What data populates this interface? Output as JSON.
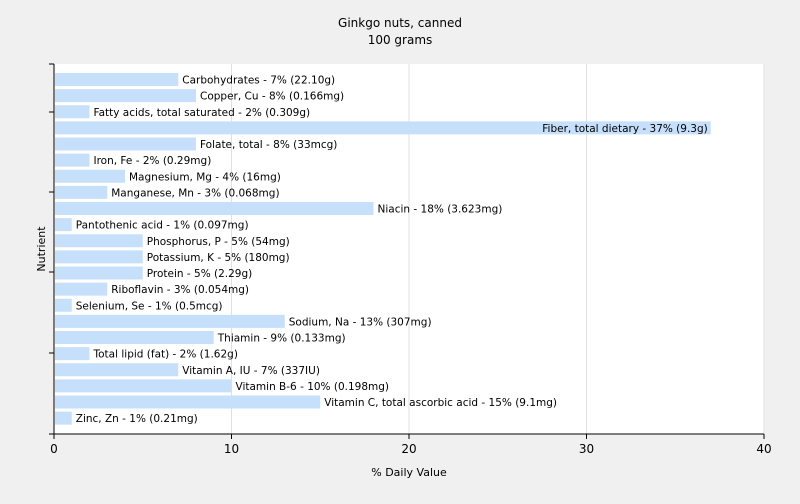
{
  "chart_data": {
    "type": "bar",
    "orientation": "horizontal",
    "title": "Ginkgo nuts, canned",
    "subtitle": "100 grams",
    "xlabel": "% Daily Value",
    "ylabel": "Nutrient",
    "xlim": [
      0,
      40
    ],
    "xticks": [
      0,
      10,
      20,
      30,
      40
    ],
    "grid": true,
    "bar_color": "#c6dffb",
    "background_color": "#f0f0f0",
    "plot_background_color": "#ffffff",
    "categories": [
      "Carbohydrates",
      "Copper, Cu",
      "Fatty acids, total saturated",
      "Fiber, total dietary",
      "Folate, total",
      "Iron, Fe",
      "Magnesium, Mg",
      "Manganese, Mn",
      "Niacin",
      "Pantothenic acid",
      "Phosphorus, P",
      "Potassium, K",
      "Protein",
      "Riboflavin",
      "Selenium, Se",
      "Sodium, Na",
      "Thiamin",
      "Total lipid (fat)",
      "Vitamin A, IU",
      "Vitamin B-6",
      "Vitamin C, total ascorbic acid",
      "Zinc, Zn"
    ],
    "values": [
      7,
      8,
      2,
      37,
      8,
      2,
      4,
      3,
      18,
      1,
      5,
      5,
      5,
      3,
      1,
      13,
      9,
      2,
      7,
      10,
      15,
      1
    ],
    "labels": [
      "Carbohydrates - 7% (22.10g)",
      "Copper, Cu - 8% (0.166mg)",
      "Fatty acids, total saturated - 2% (0.309g)",
      "Fiber, total dietary - 37% (9.3g)",
      "Folate, total - 8% (33mcg)",
      "Iron, Fe - 2% (0.29mg)",
      "Magnesium, Mg - 4% (16mg)",
      "Manganese, Mn - 3% (0.068mg)",
      "Niacin - 18% (3.623mg)",
      "Pantothenic acid - 1% (0.097mg)",
      "Phosphorus, P - 5% (54mg)",
      "Potassium, K - 5% (180mg)",
      "Protein - 5% (2.29g)",
      "Riboflavin - 3% (0.054mg)",
      "Selenium, Se - 1% (0.5mcg)",
      "Sodium, Na - 13% (307mg)",
      "Thiamin - 9% (0.133mg)",
      "Total lipid (fat) - 2% (1.62g)",
      "Vitamin A, IU - 7% (337IU)",
      "Vitamin B-6 - 10% (0.198mg)",
      "Vitamin C, total ascorbic acid - 15% (9.1mg)",
      "Zinc, Zn - 1% (0.21mg)"
    ]
  }
}
